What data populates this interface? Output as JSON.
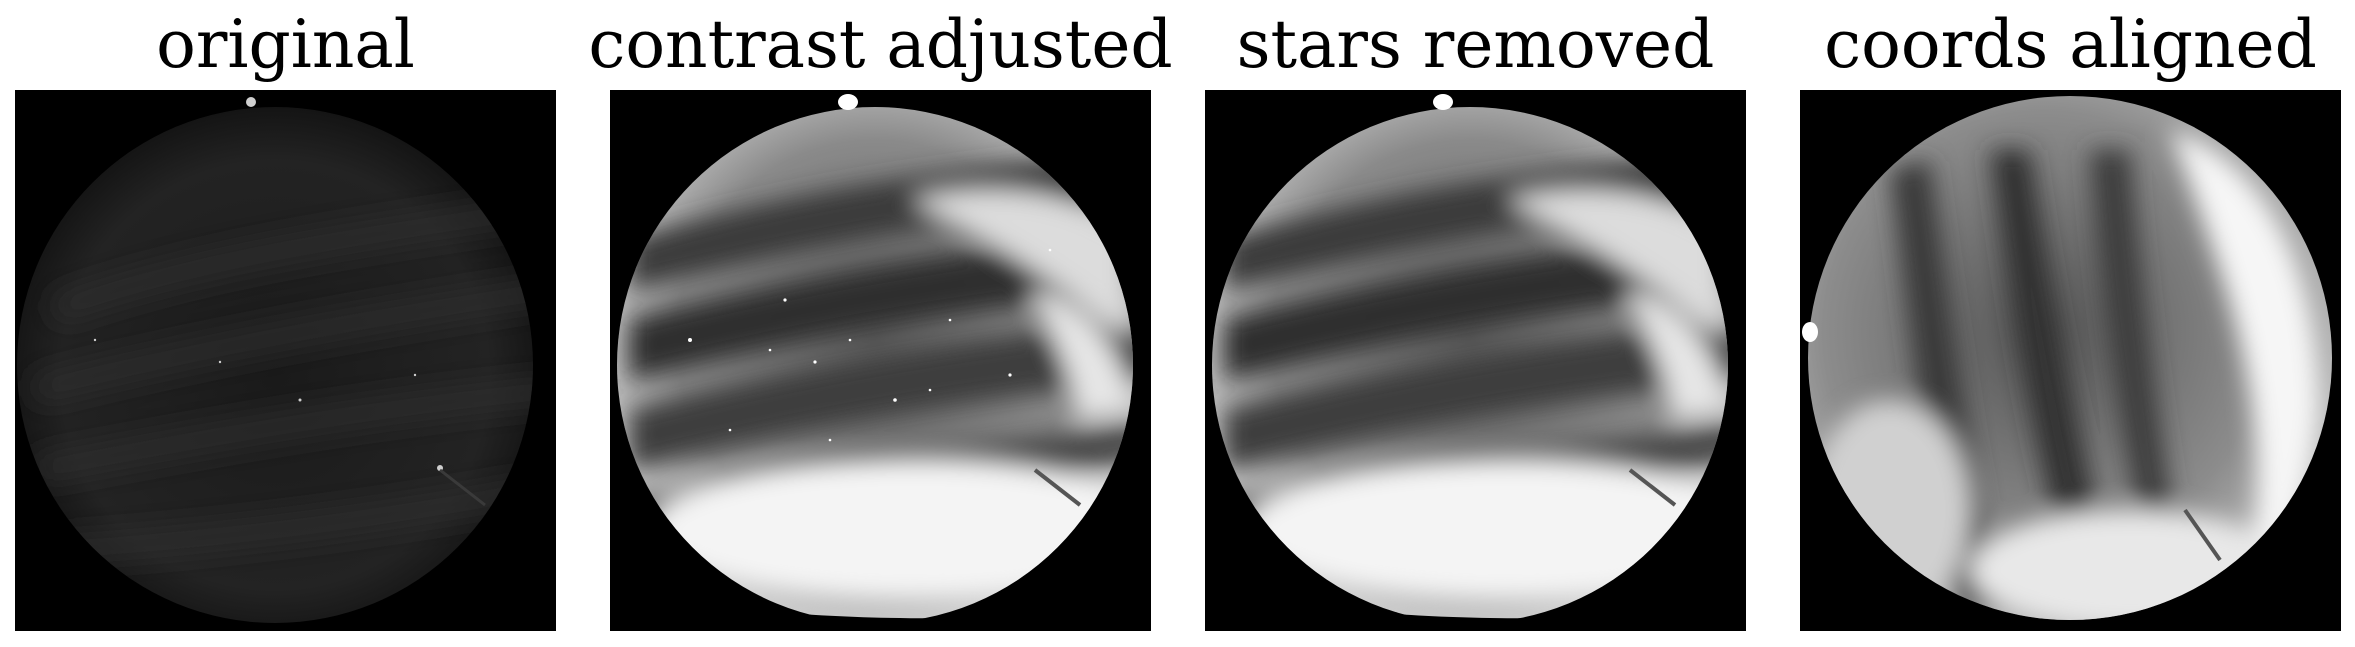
{
  "panels": [
    {
      "title": "original",
      "variant": "dim"
    },
    {
      "title": "contrast adjusted",
      "variant": "bright"
    },
    {
      "title": "stars removed",
      "variant": "smooth"
    },
    {
      "title": "coords aligned",
      "variant": "rotated"
    }
  ]
}
